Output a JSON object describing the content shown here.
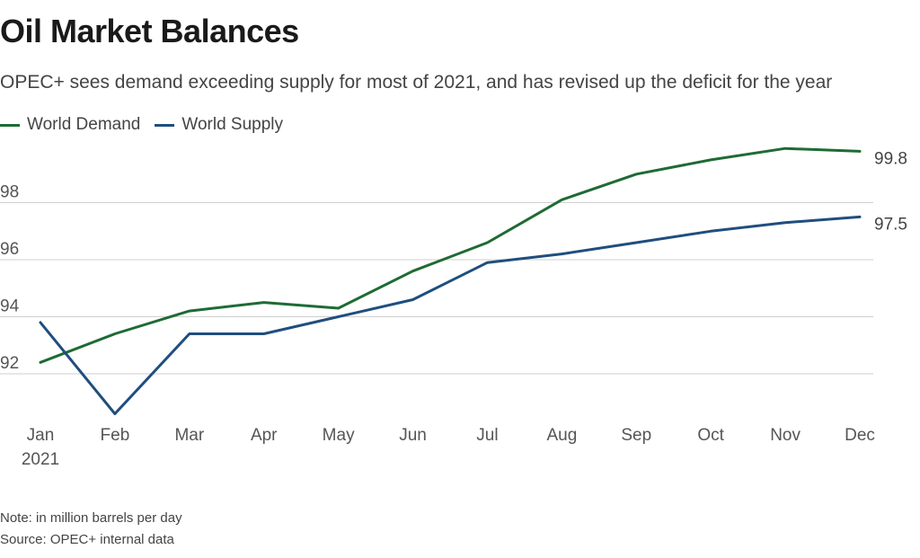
{
  "header": {
    "title": "Oil Market Balances",
    "subtitle": "OPEC+ sees demand exceeding supply for most of 2021, and has revised up the deficit for the year"
  },
  "legend": [
    {
      "label": "World Demand",
      "color": "#1e6b34"
    },
    {
      "label": "World Supply",
      "color": "#1f4e7e"
    }
  ],
  "footer": {
    "note": "Note: in million barrels per day",
    "source": "Source: OPEC+ internal data"
  },
  "chart_data": {
    "type": "line",
    "x": [
      "Jan",
      "Feb",
      "Mar",
      "Apr",
      "May",
      "Jun",
      "Jul",
      "Aug",
      "Sep",
      "Oct",
      "Nov",
      "Dec"
    ],
    "x_sublabel": {
      "index": 0,
      "text": "2021"
    },
    "series": [
      {
        "name": "World Demand",
        "color": "#1e6b34",
        "values": [
          92.4,
          93.4,
          94.2,
          94.5,
          94.3,
          95.6,
          96.6,
          98.1,
          99.0,
          99.5,
          99.9,
          99.8
        ],
        "end_label": "99.8"
      },
      {
        "name": "World Supply",
        "color": "#1f4e7e",
        "values": [
          93.8,
          90.6,
          93.4,
          93.4,
          94.0,
          94.6,
          95.9,
          96.2,
          96.6,
          97.0,
          97.3,
          97.5
        ],
        "end_label": "97.5"
      }
    ],
    "yticks": [
      92,
      94,
      96,
      98
    ],
    "ylim": [
      90.6,
      100.2
    ],
    "grid": true,
    "xlabel": "",
    "ylabel": ""
  }
}
